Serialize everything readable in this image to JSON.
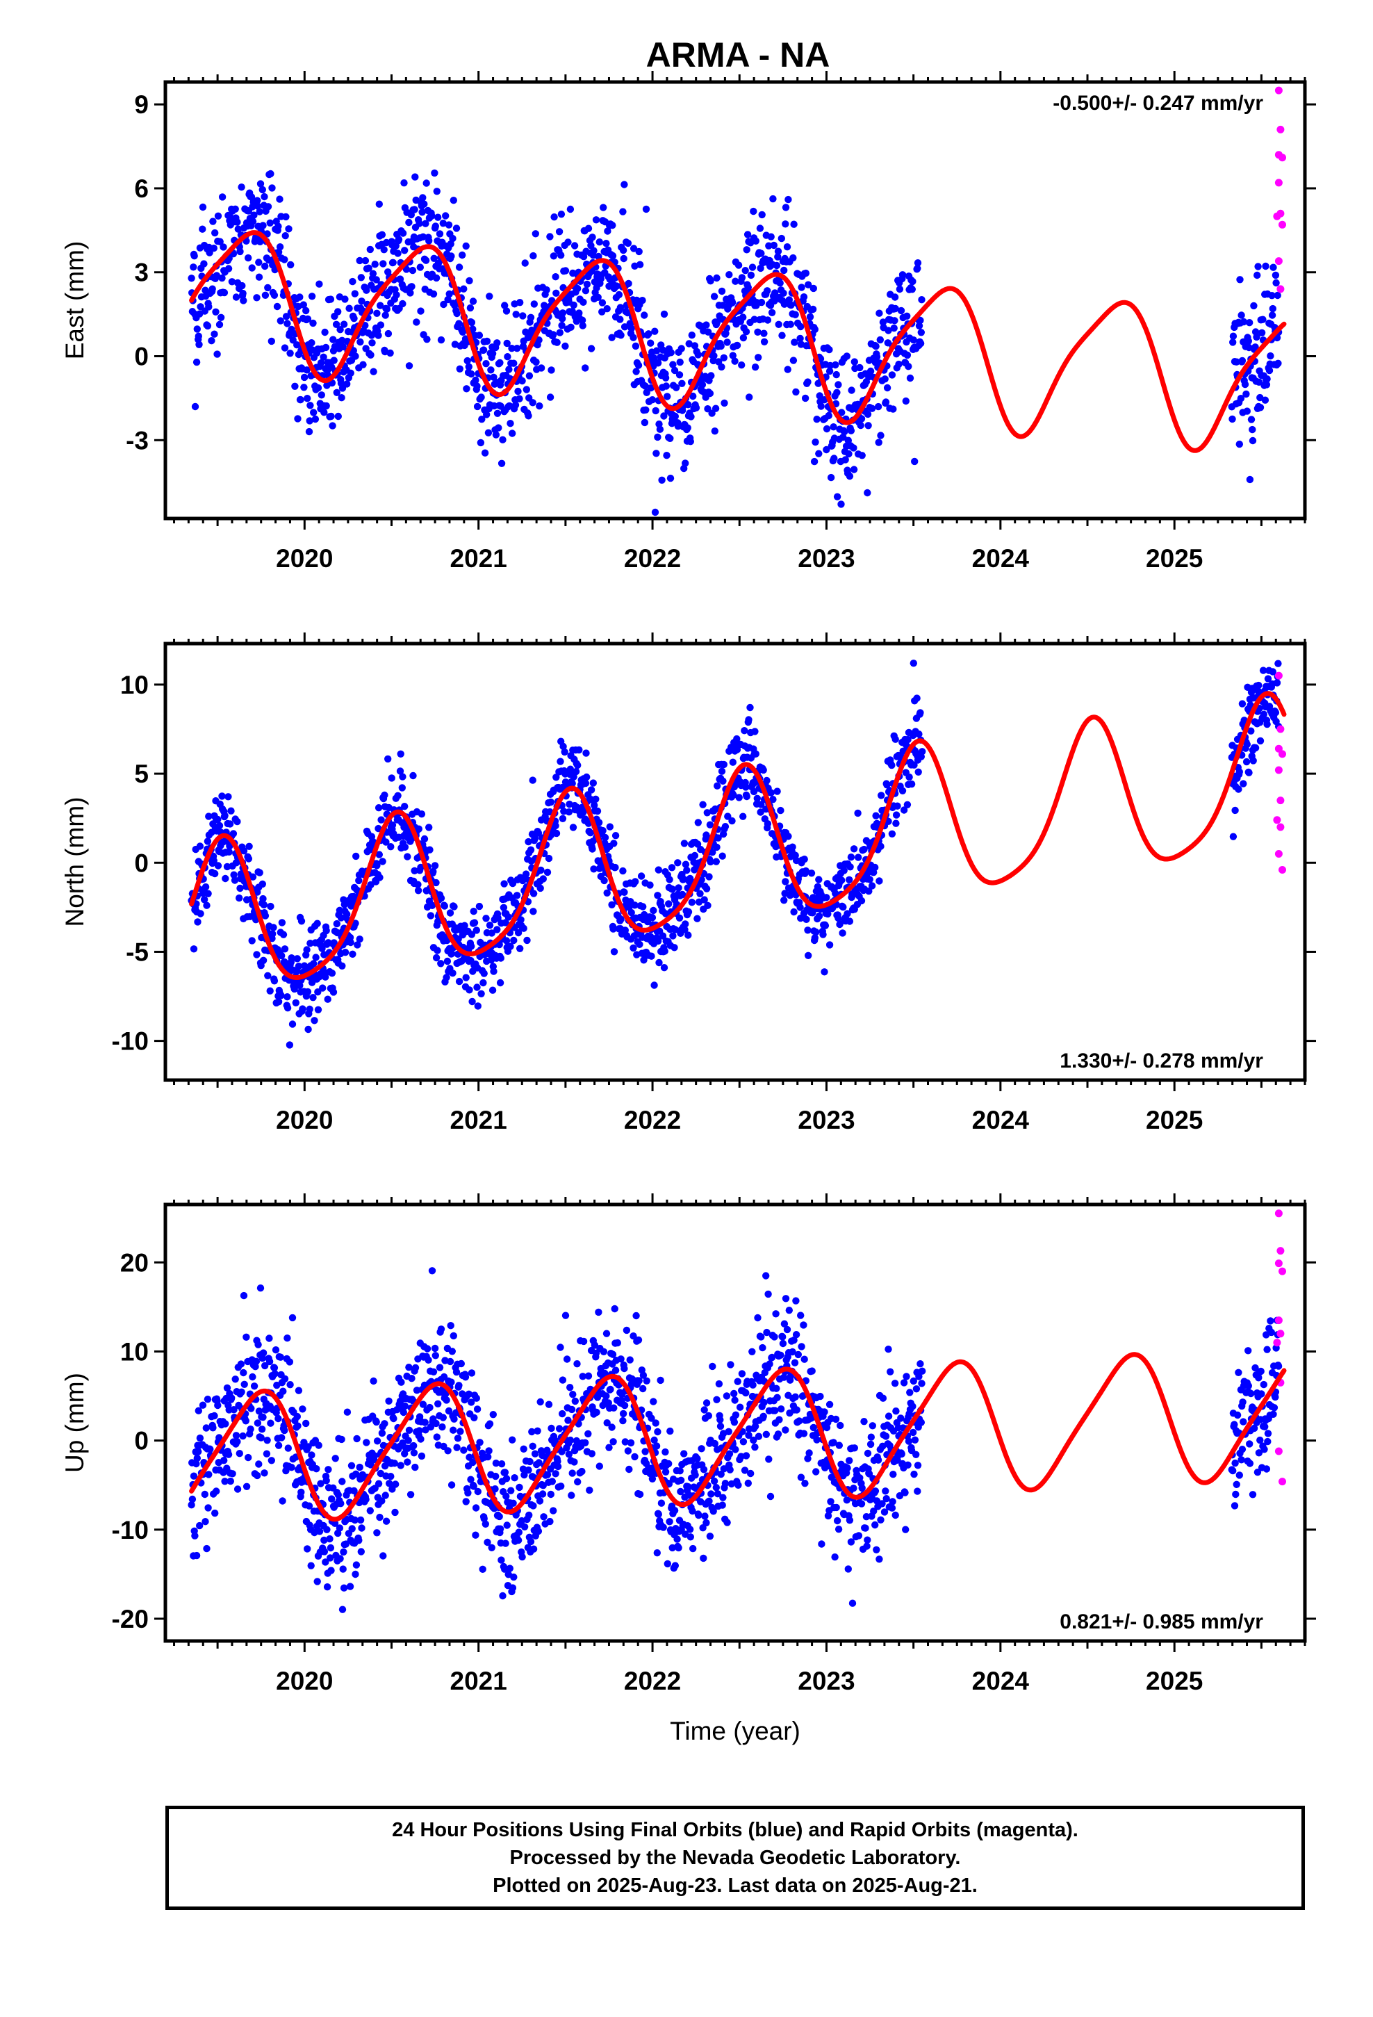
{
  "title": "ARMA - NA",
  "colors": {
    "final_orbits": "#0000ff",
    "rapid_orbits": "#ff00ff",
    "model_fit": "#ff0000",
    "axis": "#000000"
  },
  "chart_data": [
    {
      "type": "scatter",
      "component": "East",
      "ylabel": "East (mm)",
      "xlabel": "",
      "annotation": "-0.500+/- 0.247 mm/yr",
      "annotation_position": "top-right",
      "xlim": [
        2019.2,
        2025.75
      ],
      "ylim": [
        -5.8,
        9.8
      ],
      "yticks": [
        9,
        6,
        3,
        0,
        -3
      ],
      "ytick_labels": [
        "9",
        "6",
        "3",
        "0",
        "-3"
      ],
      "xticks": [
        2020,
        2021,
        2022,
        2023,
        2024,
        2025
      ],
      "xtick_labels": [
        "2020",
        "2021",
        "2022",
        "2023",
        "2024",
        "2025"
      ],
      "grid": false,
      "series": [
        {
          "kind": "final_orbits",
          "segments": [
            [
              2019.35,
              2023.55
            ],
            [
              2025.33,
              2025.6
            ]
          ],
          "model": {
            "offset": 0.7,
            "trend": -0.5,
            "ref_year": 2022.5,
            "annual_amp": 2.4,
            "annual_peak": 2019.65,
            "semiannual_amp": 0.5,
            "semiannual_peak": 2019.82
          },
          "noise_sd": 1.3
        },
        {
          "kind": "rapid_orbits",
          "points": [
            [
              2025.6,
              9.5
            ],
            [
              2025.61,
              8.1
            ],
            [
              2025.6,
              7.2
            ],
            [
              2025.62,
              7.1
            ],
            [
              2025.6,
              6.2
            ],
            [
              2025.61,
              5.1
            ],
            [
              2025.59,
              5.0
            ],
            [
              2025.62,
              4.7
            ],
            [
              2025.6,
              3.4
            ],
            [
              2025.61,
              2.4
            ]
          ]
        },
        {
          "kind": "model_fit",
          "range": [
            2019.35,
            2025.63
          ],
          "model": {
            "offset": 0.7,
            "trend": -0.5,
            "ref_year": 2022.5,
            "annual_amp": 2.4,
            "annual_peak": 2019.65,
            "semiannual_amp": 0.5,
            "semiannual_peak": 2019.82
          }
        }
      ]
    },
    {
      "type": "scatter",
      "component": "North",
      "ylabel": "North (mm)",
      "xlabel": "",
      "annotation": "1.330+/- 0.278 mm/yr",
      "annotation_position": "bottom-right",
      "xlim": [
        2019.2,
        2025.75
      ],
      "ylim": [
        -12.2,
        12.3
      ],
      "yticks": [
        10,
        5,
        0,
        -5,
        -10
      ],
      "ytick_labels": [
        "10",
        "5",
        "0",
        "-5",
        "-10"
      ],
      "xticks": [
        2020,
        2021,
        2022,
        2023,
        2024,
        2025
      ],
      "xtick_labels": [
        "2020",
        "2021",
        "2022",
        "2023",
        "2024",
        "2025"
      ],
      "grid": false,
      "series": [
        {
          "kind": "final_orbits",
          "segments": [
            [
              2019.35,
              2023.55
            ],
            [
              2025.33,
              2025.6
            ]
          ],
          "model": {
            "offset": 0.5,
            "trend": 1.33,
            "ref_year": 2022.5,
            "annual_amp": 4.2,
            "annual_peak": 2019.52,
            "semiannual_amp": 0.8,
            "semiannual_peak": 2019.55
          },
          "noise_sd": 1.3
        },
        {
          "kind": "rapid_orbits",
          "points": [
            [
              2025.6,
              10.5
            ],
            [
              2025.61,
              7.5
            ],
            [
              2025.6,
              6.4
            ],
            [
              2025.62,
              6.1
            ],
            [
              2025.6,
              5.2
            ],
            [
              2025.61,
              3.5
            ],
            [
              2025.59,
              2.4
            ],
            [
              2025.61,
              2.0
            ],
            [
              2025.6,
              0.5
            ],
            [
              2025.62,
              -0.4
            ]
          ]
        },
        {
          "kind": "model_fit",
          "range": [
            2019.35,
            2025.63
          ],
          "model": {
            "offset": 0.5,
            "trend": 1.33,
            "ref_year": 2022.5,
            "annual_amp": 4.2,
            "annual_peak": 2019.52,
            "semiannual_amp": 0.8,
            "semiannual_peak": 2019.55
          }
        }
      ]
    },
    {
      "type": "scatter",
      "component": "Up",
      "ylabel": "Up (mm)",
      "xlabel": "Time (year)",
      "annotation": "0.821+/- 0.985 mm/yr",
      "annotation_position": "bottom-right",
      "xlim": [
        2019.2,
        2025.75
      ],
      "ylim": [
        -22.5,
        26.5
      ],
      "yticks": [
        20,
        10,
        0,
        -10,
        -20
      ],
      "ytick_labels": [
        "20",
        "10",
        "0",
        "-10",
        "-20"
      ],
      "xticks": [
        2020,
        2021,
        2022,
        2023,
        2024,
        2025
      ],
      "xtick_labels": [
        "2020",
        "2021",
        "2022",
        "2023",
        "2024",
        "2025"
      ],
      "grid": false,
      "series": [
        {
          "kind": "final_orbits",
          "segments": [
            [
              2019.35,
              2023.55
            ],
            [
              2025.33,
              2025.6
            ]
          ],
          "model": {
            "offset": 0.5,
            "trend": 0.82,
            "ref_year": 2022.5,
            "annual_amp": 7.0,
            "annual_peak": 2019.72,
            "semiannual_amp": 1.2,
            "semiannual_peak": 2019.85
          },
          "noise_sd": 4.0
        },
        {
          "kind": "rapid_orbits",
          "points": [
            [
              2025.6,
              25.5
            ],
            [
              2025.61,
              21.3
            ],
            [
              2025.6,
              19.9
            ],
            [
              2025.62,
              19.0
            ],
            [
              2025.6,
              13.5
            ],
            [
              2025.61,
              12.0
            ],
            [
              2025.59,
              11.0
            ],
            [
              2025.61,
              6.5
            ],
            [
              2025.6,
              -1.2
            ],
            [
              2025.62,
              -4.6
            ]
          ]
        },
        {
          "kind": "model_fit",
          "range": [
            2019.35,
            2025.63
          ],
          "model": {
            "offset": 0.5,
            "trend": 0.82,
            "ref_year": 2022.5,
            "annual_amp": 7.0,
            "annual_peak": 2019.72,
            "semiannual_amp": 1.2,
            "semiannual_peak": 2019.85
          }
        }
      ]
    }
  ],
  "caption": {
    "lines": [
      "24 Hour Positions Using Final Orbits (blue) and Rapid Orbits (magenta).",
      "Processed by the Nevada Geodetic Laboratory.",
      "Plotted on 2025-Aug-23. Last data on 2025-Aug-21."
    ]
  }
}
